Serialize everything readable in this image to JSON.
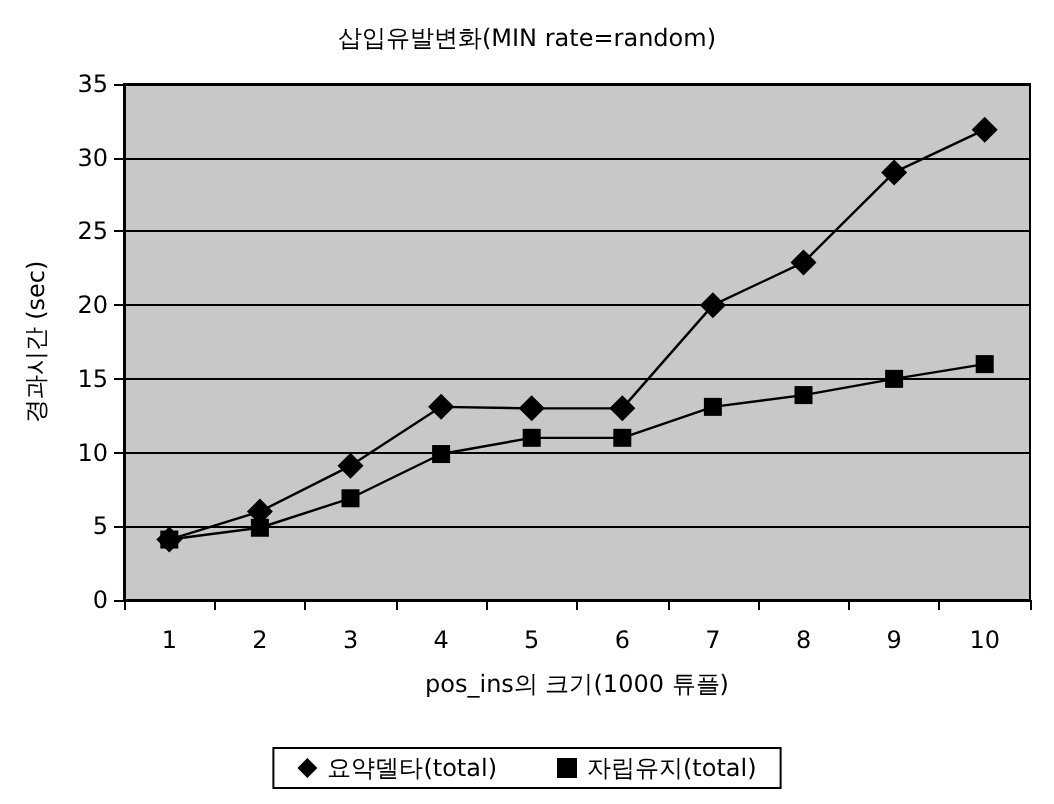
{
  "chart_data": {
    "type": "line",
    "title": "삽입유발변화(MIN rate=random)",
    "xlabel": "pos_ins의 크기(1000 튜플)",
    "ylabel": "경과시간 (sec)",
    "categories": [
      "1",
      "2",
      "3",
      "4",
      "5",
      "6",
      "7",
      "8",
      "9",
      "10"
    ],
    "series": [
      {
        "name": "요약델타(total)",
        "color": "#000000",
        "marker": "diamond",
        "values": [
          4.1,
          6,
          9.1,
          13.1,
          13,
          13,
          20,
          22.9,
          29,
          31.9
        ]
      },
      {
        "name": "자립유지(total)",
        "color": "#000000",
        "marker": "square",
        "values": [
          4.1,
          4.9,
          6.9,
          9.9,
          11,
          11,
          13.1,
          13.9,
          15,
          16
        ]
      }
    ],
    "ylim": [
      0,
      35
    ],
    "yticks": [
      0,
      5,
      10,
      15,
      20,
      25,
      30,
      35
    ],
    "grid": "y",
    "legend": "bottom"
  }
}
